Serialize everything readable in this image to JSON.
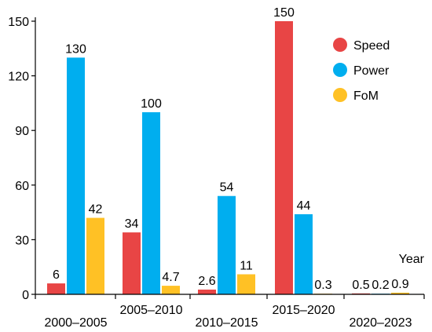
{
  "chart_data": {
    "type": "bar",
    "categories": [
      "2000–2005",
      "2005–2010",
      "2010–2015",
      "2015–2020",
      "2020–2023"
    ],
    "series": [
      {
        "name": "Speed",
        "color": "#e84545",
        "values": [
          6,
          34,
          2.6,
          150,
          0.5
        ],
        "labels": [
          "6",
          "34",
          "2.6",
          "150",
          "0.5"
        ]
      },
      {
        "name": "Power",
        "color": "#00aeef",
        "values": [
          130,
          100,
          54,
          44,
          0.2
        ],
        "labels": [
          "130",
          "100",
          "54",
          "44",
          "0.2"
        ]
      },
      {
        "name": "FoM",
        "color": "#ffc125",
        "values": [
          42,
          4.7,
          11,
          0.3,
          0.9
        ],
        "labels": [
          "42",
          "4.7",
          "11",
          "0.3",
          "0.9"
        ]
      }
    ],
    "yticks": [
      0,
      30,
      60,
      90,
      120,
      150
    ],
    "ylim": [
      0,
      150
    ],
    "xlabel": "Year",
    "ylabel": "",
    "title": "",
    "grid": false,
    "legend_position": "top-right"
  }
}
